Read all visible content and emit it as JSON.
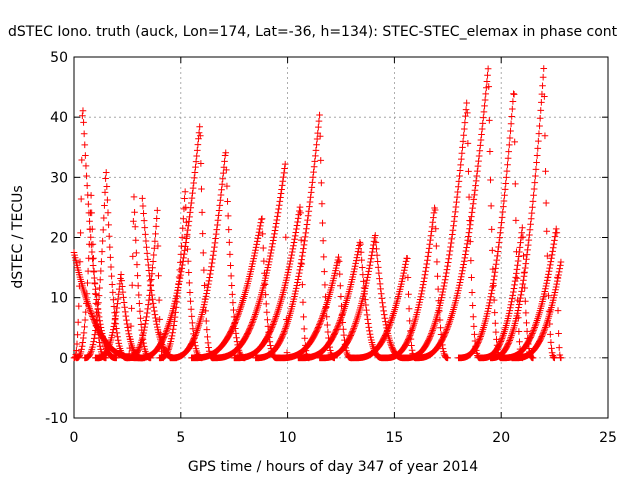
{
  "chart_data": {
    "type": "scatter",
    "title": "dSTEC Iono. truth (auck, Lon=174, Lat=-36, h=134): STEC-STEC_elemax in phase cont",
    "xlabel": "GPS time / hours of day 347 of year 2014",
    "ylabel": "dSTEC  / TECUs",
    "xlim": [
      0,
      25
    ],
    "ylim": [
      -10,
      50
    ],
    "xticks": [
      0,
      5,
      10,
      15,
      20,
      25
    ],
    "yticks": [
      -10,
      0,
      10,
      20,
      30,
      40,
      50
    ],
    "grid": true,
    "legend": "none",
    "marker": "+",
    "color": "#ff0000",
    "series": [
      {
        "arcs": [
          [
            0.0,
            2.0,
            0.4,
            42.5
          ]
        ]
      },
      {
        "arcs": [
          [
            0.0,
            3.2,
            0.0,
            17.5
          ],
          [
            3.2,
            4.8,
            3.2,
            26.5
          ]
        ]
      },
      {
        "arcs": [
          [
            0.1,
            1.5,
            0.8,
            27.0
          ]
        ]
      },
      {
        "arcs": [
          [
            0.5,
            2.5,
            1.5,
            31.5
          ],
          [
            2.5,
            3.6,
            2.8,
            27.5
          ]
        ]
      },
      {
        "arcs": [
          [
            1.0,
            3.3,
            2.2,
            14.0
          ]
        ]
      },
      {
        "arcs": [
          [
            2.5,
            4.2,
            3.9,
            24.5
          ]
        ]
      },
      {
        "arcs": [
          [
            3.0,
            6.5,
            5.9,
            39.0
          ]
        ]
      },
      {
        "arcs": [
          [
            4.0,
            6.0,
            5.2,
            28.0
          ]
        ]
      },
      {
        "arcs": [
          [
            4.5,
            8.0,
            7.1,
            34.5
          ]
        ]
      },
      {
        "arcs": [
          [
            5.5,
            9.5,
            8.8,
            23.5
          ]
        ]
      },
      {
        "arcs": [
          [
            6.5,
            10.0,
            9.9,
            32.5
          ]
        ]
      },
      {
        "arcs": [
          [
            7.5,
            11.0,
            10.6,
            25.5
          ]
        ]
      },
      {
        "arcs": [
          [
            8.5,
            12.2,
            11.5,
            40.5
          ]
        ]
      },
      {
        "arcs": [
          [
            9.5,
            13.0,
            12.4,
            17.0
          ]
        ]
      },
      {
        "arcs": [
          [
            10.5,
            14.5,
            13.4,
            19.5
          ]
        ]
      },
      {
        "arcs": [
          [
            11.5,
            15.5,
            14.1,
            20.5
          ]
        ]
      },
      {
        "arcs": [
          [
            13.0,
            16.0,
            15.6,
            17.0
          ]
        ]
      },
      {
        "arcs": [
          [
            14.5,
            17.5,
            16.9,
            25.5
          ]
        ]
      },
      {
        "arcs": [
          [
            15.5,
            19.0,
            18.4,
            43.0
          ]
        ]
      },
      {
        "arcs": [
          [
            16.0,
            20.0,
            19.4,
            48.5
          ]
        ]
      },
      {
        "arcs": [
          [
            18.0,
            21.0,
            20.6,
            45.0
          ]
        ]
      },
      {
        "arcs": [
          [
            19.0,
            21.5,
            21.0,
            22.0
          ]
        ]
      },
      {
        "arcs": [
          [
            19.5,
            22.5,
            22.0,
            48.5
          ]
        ]
      },
      {
        "arcs": [
          [
            20.0,
            22.8,
            22.6,
            22.0
          ]
        ]
      },
      {
        "arcs": [
          [
            20.5,
            22.8,
            22.8,
            16.0
          ]
        ]
      }
    ]
  }
}
